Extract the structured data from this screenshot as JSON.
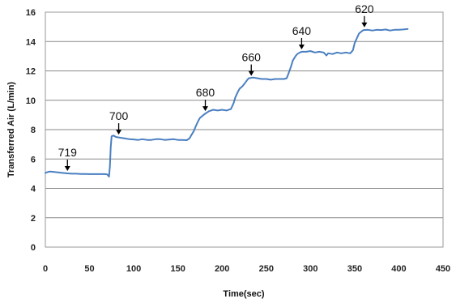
{
  "chart_data": {
    "type": "line",
    "title": "",
    "xlabel": "Time(sec)",
    "ylabel": "Transferred Air (L/min)",
    "xlim": [
      0,
      450
    ],
    "ylim": [
      0,
      16
    ],
    "x_ticks": [
      0,
      50,
      100,
      150,
      200,
      250,
      300,
      350,
      400,
      450
    ],
    "y_ticks": [
      0,
      2,
      4,
      6,
      8,
      10,
      12,
      14,
      16
    ],
    "grid": "horizontal",
    "line_color": "#4a7fc1",
    "series": [
      {
        "x": [
          0,
          2,
          5,
          10,
          15,
          20,
          25,
          30,
          35,
          40,
          45,
          50,
          55,
          60,
          65,
          68,
          70,
          72,
          73,
          74,
          75,
          77,
          80,
          85,
          90,
          95,
          100,
          105,
          110,
          115,
          120,
          125,
          130,
          135,
          140,
          145,
          150,
          155,
          160,
          163,
          165,
          168,
          170,
          173,
          175,
          178,
          180,
          185,
          190,
          195,
          200,
          205,
          210,
          213,
          215,
          218,
          220,
          223,
          225,
          228,
          230,
          235,
          240,
          245,
          250,
          255,
          260,
          265,
          270,
          273,
          275,
          278,
          280,
          283,
          285,
          288,
          290,
          295,
          300,
          305,
          310,
          315,
          318,
          320,
          325,
          330,
          335,
          340,
          345,
          348,
          350,
          353,
          355,
          358,
          360,
          365,
          370,
          375,
          380,
          385,
          390,
          395,
          400,
          405,
          410
        ],
        "y": [
          5.05,
          5.1,
          5.15,
          5.12,
          5.08,
          5.05,
          5.02,
          5.0,
          5.0,
          4.98,
          4.98,
          4.97,
          4.97,
          4.97,
          4.97,
          4.97,
          4.95,
          4.8,
          5.5,
          6.8,
          7.55,
          7.6,
          7.5,
          7.45,
          7.4,
          7.35,
          7.33,
          7.3,
          7.35,
          7.3,
          7.3,
          7.35,
          7.35,
          7.3,
          7.32,
          7.35,
          7.3,
          7.3,
          7.28,
          7.4,
          7.6,
          7.9,
          8.2,
          8.6,
          8.8,
          8.95,
          9.05,
          9.25,
          9.35,
          9.3,
          9.35,
          9.3,
          9.4,
          9.8,
          10.2,
          10.6,
          10.8,
          10.95,
          11.1,
          11.35,
          11.5,
          11.55,
          11.5,
          11.45,
          11.45,
          11.4,
          11.45,
          11.45,
          11.45,
          11.5,
          11.8,
          12.3,
          12.7,
          13.0,
          13.15,
          13.25,
          13.3,
          13.3,
          13.35,
          13.25,
          13.3,
          13.25,
          13.05,
          13.2,
          13.15,
          13.25,
          13.2,
          13.25,
          13.2,
          13.4,
          13.9,
          14.3,
          14.55,
          14.7,
          14.78,
          14.8,
          14.75,
          14.8,
          14.78,
          14.82,
          14.75,
          14.8,
          14.8,
          14.82,
          14.85
        ]
      }
    ],
    "annotations": [
      {
        "text": "719",
        "x": 25,
        "y": 5.02
      },
      {
        "text": "700",
        "x": 83,
        "y": 7.5
      },
      {
        "text": "680",
        "x": 181,
        "y": 9.1
      },
      {
        "text": "660",
        "x": 233,
        "y": 11.5
      },
      {
        "text": "640",
        "x": 290,
        "y": 13.3
      },
      {
        "text": "620",
        "x": 361,
        "y": 14.8
      }
    ]
  }
}
